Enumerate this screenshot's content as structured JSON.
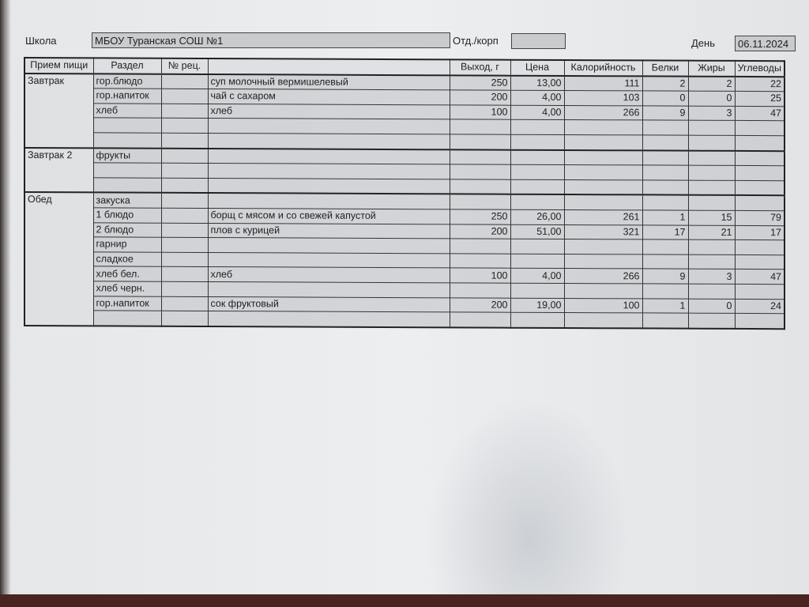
{
  "header": {
    "school_label": "Школа",
    "school_value": "МБОУ Туранская СОШ №1",
    "dept_label": "Отд./корп",
    "dept_value": "",
    "day_label": "День",
    "day_value": "06.11.2024"
  },
  "columns": [
    "Прием пищи",
    "Раздел",
    "№ рец.",
    "",
    "Выход, г",
    "Цена",
    "Калорийность",
    "Белки",
    "Жиры",
    "Углеводы"
  ],
  "meals": [
    {
      "name": "Завтрак",
      "rows": [
        [
          "гор.блюдо",
          "",
          "суп молочный вермишелевый",
          "250",
          "13,00",
          "111",
          "2",
          "2",
          "22"
        ],
        [
          "гор.напиток",
          "",
          "чай с сахаром",
          "200",
          "4,00",
          "103",
          "0",
          "0",
          "25"
        ],
        [
          "хлеб",
          "",
          "хлеб",
          "100",
          "4,00",
          "266",
          "9",
          "3",
          "47"
        ],
        [
          "",
          "",
          "",
          "",
          "",
          "",
          "",
          "",
          ""
        ],
        [
          "",
          "",
          "",
          "",
          "",
          "",
          "",
          "",
          ""
        ]
      ]
    },
    {
      "name": "Завтрак 2",
      "rows": [
        [
          "фрукты",
          "",
          "",
          "",
          "",
          "",
          "",
          "",
          ""
        ],
        [
          "",
          "",
          "",
          "",
          "",
          "",
          "",
          "",
          ""
        ],
        [
          "",
          "",
          "",
          "",
          "",
          "",
          "",
          "",
          ""
        ]
      ]
    },
    {
      "name": "Обед",
      "rows": [
        [
          "закуска",
          "",
          "",
          "",
          "",
          "",
          "",
          "",
          ""
        ],
        [
          "1 блюдо",
          "",
          "борщ с мясом и со свежей капустой",
          "250",
          "26,00",
          "261",
          "1",
          "15",
          "79"
        ],
        [
          "2 блюдо",
          "",
          "плов с курицей",
          "200",
          "51,00",
          "321",
          "17",
          "21",
          "17"
        ],
        [
          "гарнир",
          "",
          "",
          "",
          "",
          "",
          "",
          "",
          ""
        ],
        [
          "сладкое",
          "",
          "",
          "",
          "",
          "",
          "",
          "",
          ""
        ],
        [
          "хлеб бел.",
          "",
          "хлеб",
          "100",
          "4,00",
          "266",
          "9",
          "3",
          "47"
        ],
        [
          "хлеб черн.",
          "",
          "",
          "",
          "",
          "",
          "",
          "",
          ""
        ],
        [
          "гор.напиток",
          "",
          "сок фруктовый",
          "200",
          "19,00",
          "100",
          "1",
          "0",
          "24"
        ],
        [
          "",
          "",
          "",
          "",
          "",
          "",
          "",
          "",
          ""
        ]
      ]
    }
  ]
}
